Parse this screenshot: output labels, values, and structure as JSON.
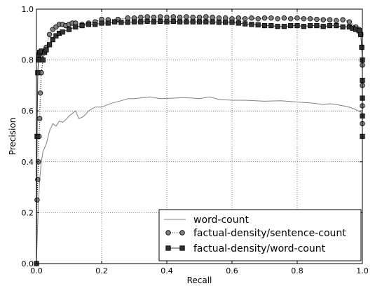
{
  "chart_data": {
    "type": "line",
    "xlabel": "Recall",
    "ylabel": "Precision",
    "xlim": [
      0.0,
      1.0
    ],
    "ylim": [
      0.0,
      1.0
    ],
    "x_ticks": [
      "0.0",
      "0.2",
      "0.4",
      "0.6",
      "0.8",
      "1.0"
    ],
    "y_ticks": [
      "0.0",
      "0.2",
      "0.4",
      "0.6",
      "0.8",
      "1.0"
    ],
    "grid": true,
    "legend_position": "lower-right",
    "series": [
      {
        "name": "word-count",
        "color": "#808080",
        "marker": "none",
        "linestyle": "solid",
        "points": [
          [
            0.0,
            0.0
          ],
          [
            0.002,
            0.08
          ],
          [
            0.005,
            0.2
          ],
          [
            0.01,
            0.33
          ],
          [
            0.015,
            0.4
          ],
          [
            0.02,
            0.44
          ],
          [
            0.03,
            0.47
          ],
          [
            0.04,
            0.52
          ],
          [
            0.05,
            0.55
          ],
          [
            0.06,
            0.54
          ],
          [
            0.07,
            0.56
          ],
          [
            0.08,
            0.555
          ],
          [
            0.09,
            0.565
          ],
          [
            0.1,
            0.58
          ],
          [
            0.11,
            0.59
          ],
          [
            0.12,
            0.6
          ],
          [
            0.13,
            0.57
          ],
          [
            0.14,
            0.575
          ],
          [
            0.15,
            0.585
          ],
          [
            0.16,
            0.6
          ],
          [
            0.18,
            0.615
          ],
          [
            0.2,
            0.615
          ],
          [
            0.23,
            0.63
          ],
          [
            0.26,
            0.64
          ],
          [
            0.28,
            0.648
          ],
          [
            0.3,
            0.648
          ],
          [
            0.33,
            0.652
          ],
          [
            0.35,
            0.655
          ],
          [
            0.38,
            0.648
          ],
          [
            0.42,
            0.65
          ],
          [
            0.45,
            0.652
          ],
          [
            0.48,
            0.65
          ],
          [
            0.5,
            0.648
          ],
          [
            0.53,
            0.655
          ],
          [
            0.56,
            0.645
          ],
          [
            0.6,
            0.642
          ],
          [
            0.64,
            0.642
          ],
          [
            0.7,
            0.638
          ],
          [
            0.75,
            0.64
          ],
          [
            0.8,
            0.635
          ],
          [
            0.85,
            0.63
          ],
          [
            0.88,
            0.625
          ],
          [
            0.9,
            0.628
          ],
          [
            0.92,
            0.625
          ],
          [
            0.94,
            0.62
          ],
          [
            0.96,
            0.615
          ],
          [
            0.98,
            0.605
          ],
          [
            0.995,
            0.595
          ],
          [
            1.0,
            0.59
          ]
        ]
      },
      {
        "name": "factual-density/sentence-count",
        "color": "#808080",
        "marker": "circle",
        "linestyle": "dotted",
        "points": [
          [
            0.0,
            0.0
          ],
          [
            0.002,
            0.25
          ],
          [
            0.004,
            0.33
          ],
          [
            0.006,
            0.4
          ],
          [
            0.008,
            0.5
          ],
          [
            0.01,
            0.57
          ],
          [
            0.012,
            0.67
          ],
          [
            0.015,
            0.75
          ],
          [
            0.02,
            0.8
          ],
          [
            0.03,
            0.85
          ],
          [
            0.04,
            0.9
          ],
          [
            0.05,
            0.92
          ],
          [
            0.06,
            0.93
          ],
          [
            0.07,
            0.94
          ],
          [
            0.08,
            0.94
          ],
          [
            0.09,
            0.935
          ],
          [
            0.1,
            0.94
          ],
          [
            0.11,
            0.945
          ],
          [
            0.12,
            0.945
          ],
          [
            0.14,
            0.94
          ],
          [
            0.16,
            0.945
          ],
          [
            0.18,
            0.95
          ],
          [
            0.2,
            0.96
          ],
          [
            0.22,
            0.958
          ],
          [
            0.25,
            0.96
          ],
          [
            0.28,
            0.965
          ],
          [
            0.3,
            0.965
          ],
          [
            0.32,
            0.968
          ],
          [
            0.34,
            0.97
          ],
          [
            0.36,
            0.968
          ],
          [
            0.38,
            0.97
          ],
          [
            0.4,
            0.968
          ],
          [
            0.42,
            0.97
          ],
          [
            0.44,
            0.968
          ],
          [
            0.46,
            0.97
          ],
          [
            0.48,
            0.968
          ],
          [
            0.5,
            0.968
          ],
          [
            0.52,
            0.97
          ],
          [
            0.54,
            0.968
          ],
          [
            0.56,
            0.965
          ],
          [
            0.58,
            0.965
          ],
          [
            0.6,
            0.962
          ],
          [
            0.62,
            0.965
          ],
          [
            0.64,
            0.962
          ],
          [
            0.66,
            0.965
          ],
          [
            0.68,
            0.962
          ],
          [
            0.7,
            0.965
          ],
          [
            0.72,
            0.965
          ],
          [
            0.74,
            0.962
          ],
          [
            0.76,
            0.965
          ],
          [
            0.78,
            0.962
          ],
          [
            0.8,
            0.965
          ],
          [
            0.82,
            0.962
          ],
          [
            0.84,
            0.962
          ],
          [
            0.86,
            0.96
          ],
          [
            0.88,
            0.958
          ],
          [
            0.9,
            0.958
          ],
          [
            0.92,
            0.955
          ],
          [
            0.94,
            0.958
          ],
          [
            0.96,
            0.95
          ],
          [
            0.98,
            0.93
          ],
          [
            0.99,
            0.92
          ],
          [
            0.995,
            0.9
          ],
          [
            0.998,
            0.85
          ],
          [
            1.0,
            0.78
          ],
          [
            1.0,
            0.7
          ],
          [
            1.0,
            0.62
          ],
          [
            1.0,
            0.55
          ]
        ]
      },
      {
        "name": "factual-density/word-count",
        "color": "#333333",
        "marker": "square",
        "linestyle": "solid",
        "points": [
          [
            0.0,
            0.0
          ],
          [
            0.002,
            0.5
          ],
          [
            0.004,
            0.75
          ],
          [
            0.006,
            0.8
          ],
          [
            0.008,
            0.82
          ],
          [
            0.01,
            0.83
          ],
          [
            0.015,
            0.835
          ],
          [
            0.02,
            0.8
          ],
          [
            0.025,
            0.83
          ],
          [
            0.03,
            0.84
          ],
          [
            0.04,
            0.86
          ],
          [
            0.05,
            0.88
          ],
          [
            0.06,
            0.895
          ],
          [
            0.07,
            0.905
          ],
          [
            0.08,
            0.91
          ],
          [
            0.1,
            0.92
          ],
          [
            0.12,
            0.93
          ],
          [
            0.14,
            0.935
          ],
          [
            0.16,
            0.94
          ],
          [
            0.18,
            0.94
          ],
          [
            0.2,
            0.945
          ],
          [
            0.22,
            0.945
          ],
          [
            0.24,
            0.95
          ],
          [
            0.26,
            0.948
          ],
          [
            0.28,
            0.948
          ],
          [
            0.3,
            0.95
          ],
          [
            0.32,
            0.95
          ],
          [
            0.34,
            0.952
          ],
          [
            0.36,
            0.95
          ],
          [
            0.38,
            0.952
          ],
          [
            0.4,
            0.95
          ],
          [
            0.42,
            0.952
          ],
          [
            0.44,
            0.95
          ],
          [
            0.46,
            0.95
          ],
          [
            0.48,
            0.95
          ],
          [
            0.5,
            0.95
          ],
          [
            0.52,
            0.95
          ],
          [
            0.54,
            0.95
          ],
          [
            0.56,
            0.948
          ],
          [
            0.58,
            0.948
          ],
          [
            0.6,
            0.948
          ],
          [
            0.62,
            0.945
          ],
          [
            0.64,
            0.942
          ],
          [
            0.66,
            0.94
          ],
          [
            0.68,
            0.938
          ],
          [
            0.7,
            0.935
          ],
          [
            0.72,
            0.935
          ],
          [
            0.74,
            0.932
          ],
          [
            0.76,
            0.932
          ],
          [
            0.78,
            0.935
          ],
          [
            0.8,
            0.935
          ],
          [
            0.82,
            0.932
          ],
          [
            0.84,
            0.935
          ],
          [
            0.86,
            0.935
          ],
          [
            0.88,
            0.932
          ],
          [
            0.9,
            0.935
          ],
          [
            0.92,
            0.935
          ],
          [
            0.94,
            0.93
          ],
          [
            0.96,
            0.93
          ],
          [
            0.97,
            0.925
          ],
          [
            0.98,
            0.92
          ],
          [
            0.99,
            0.915
          ],
          [
            0.995,
            0.9
          ],
          [
            0.998,
            0.85
          ],
          [
            1.0,
            0.8
          ],
          [
            1.0,
            0.72
          ],
          [
            1.0,
            0.65
          ],
          [
            1.0,
            0.58
          ],
          [
            1.0,
            0.5
          ]
        ]
      }
    ]
  }
}
